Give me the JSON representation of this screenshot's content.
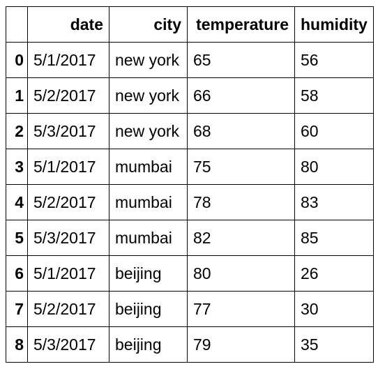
{
  "table": {
    "columns": [
      "",
      "date",
      "city",
      "temperature",
      "humidity"
    ],
    "rows": [
      {
        "index": "0",
        "date": "5/1/2017",
        "city": "new york",
        "temperature": "65",
        "humidity": "56"
      },
      {
        "index": "1",
        "date": "5/2/2017",
        "city": "new york",
        "temperature": "66",
        "humidity": "58"
      },
      {
        "index": "2",
        "date": "5/3/2017",
        "city": "new york",
        "temperature": "68",
        "humidity": "60"
      },
      {
        "index": "3",
        "date": "5/1/2017",
        "city": "mumbai",
        "temperature": "75",
        "humidity": "80"
      },
      {
        "index": "4",
        "date": "5/2/2017",
        "city": "mumbai",
        "temperature": "78",
        "humidity": "83"
      },
      {
        "index": "5",
        "date": "5/3/2017",
        "city": "mumbai",
        "temperature": "82",
        "humidity": "85"
      },
      {
        "index": "6",
        "date": "5/1/2017",
        "city": "beijing",
        "temperature": "80",
        "humidity": "26"
      },
      {
        "index": "7",
        "date": "5/2/2017",
        "city": "beijing",
        "temperature": "77",
        "humidity": "30"
      },
      {
        "index": "8",
        "date": "5/3/2017",
        "city": "beijing",
        "temperature": "79",
        "humidity": "35"
      }
    ]
  }
}
